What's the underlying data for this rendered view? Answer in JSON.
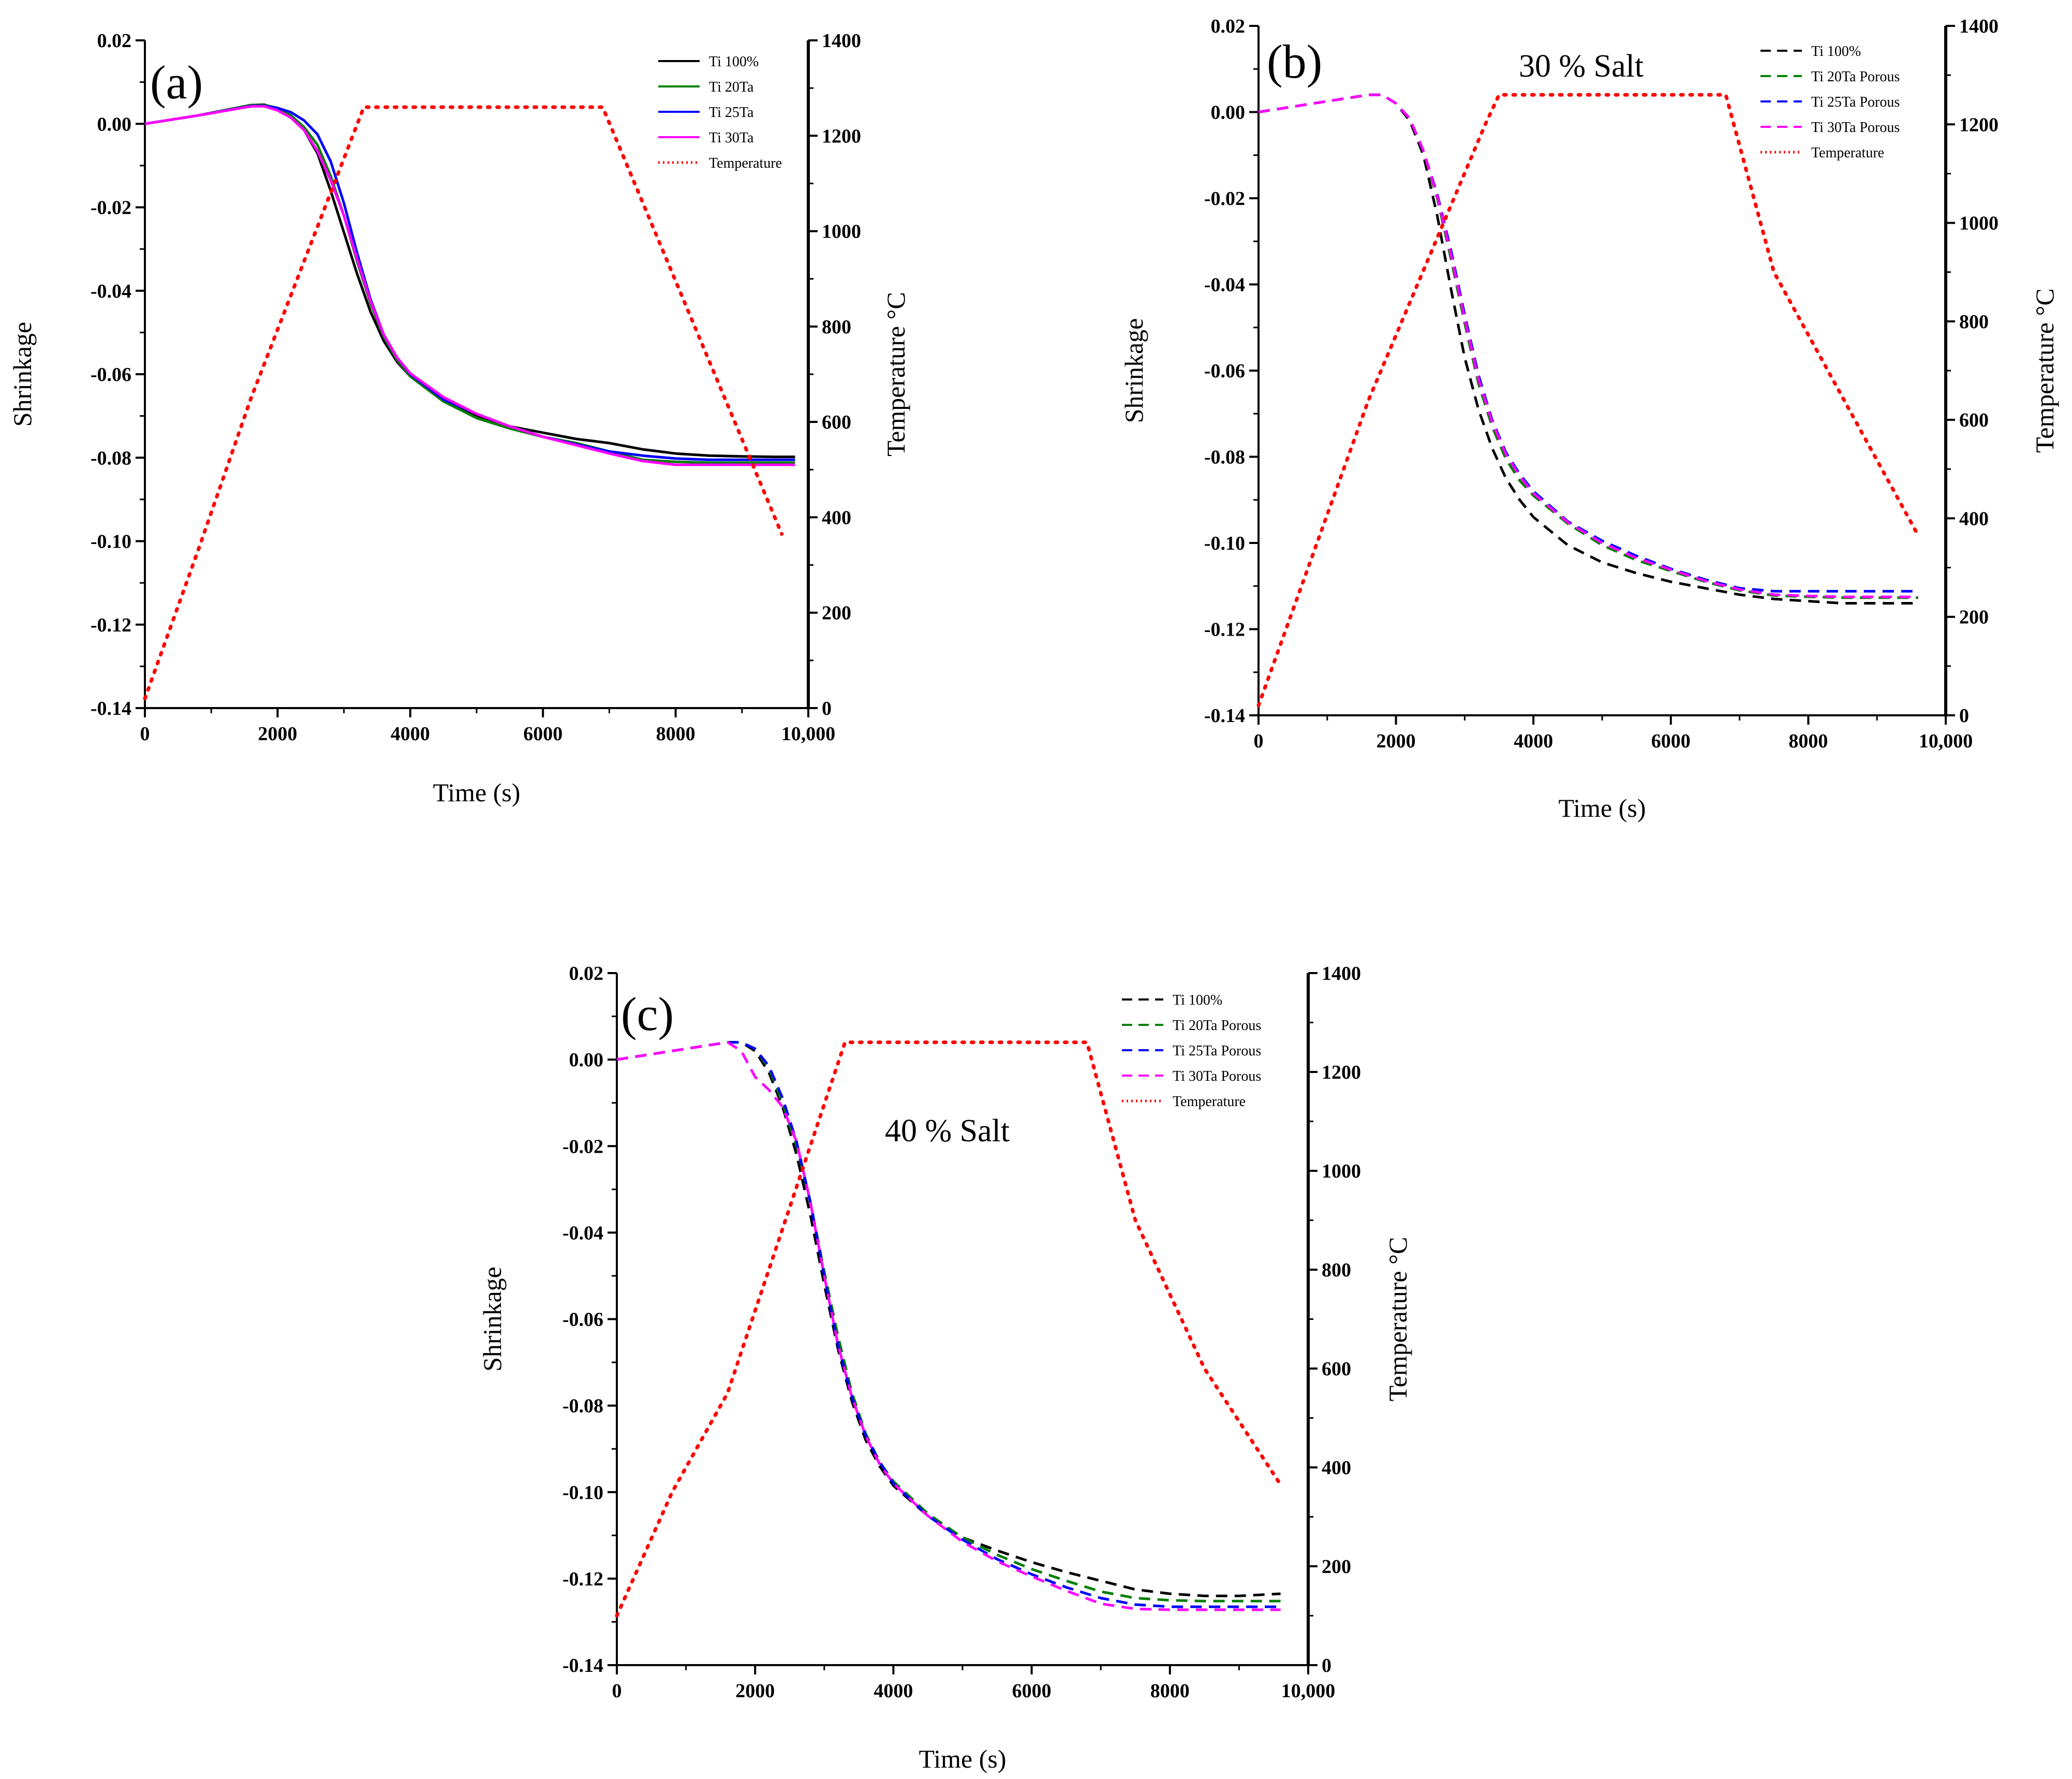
{
  "figure": {
    "bg_color": "#ffffff"
  },
  "chart_data": [
    {
      "panel": "(a)",
      "type": "line",
      "annotation": "",
      "xlabel": "Time (s)",
      "ylabel": "Shrinkage",
      "y2label": "Temperature °C",
      "xlim": [
        0,
        10000
      ],
      "ylim": [
        -0.14,
        0.02
      ],
      "y2lim": [
        0,
        1400
      ],
      "xticks": [
        0,
        2000,
        4000,
        6000,
        8000,
        10000
      ],
      "xtick_labels": [
        "0",
        "2000",
        "4000",
        "6000",
        "8000",
        "10,000"
      ],
      "yticks": [
        0.02,
        0.0,
        -0.02,
        -0.04,
        -0.06,
        -0.08,
        -0.1,
        -0.12,
        -0.14
      ],
      "ytick_labels": [
        "0.02",
        "0.00",
        "-0.02",
        "-0.04",
        "-0.06",
        "-0.08",
        "-0.10",
        "-0.12",
        "-0.14"
      ],
      "y2ticks": [
        0,
        200,
        400,
        600,
        800,
        1000,
        1200,
        1400
      ],
      "y2tick_labels": [
        "0",
        "200",
        "400",
        "600",
        "800",
        "1000",
        "1200",
        "1400"
      ],
      "grid": false,
      "legend_position": "top-right",
      "series": [
        {
          "name": "Ti 100%",
          "color": "#000000",
          "style": "solid",
          "axis": "left",
          "x": [
            0,
            800,
            1600,
            1800,
            2000,
            2200,
            2400,
            2600,
            2800,
            3000,
            3200,
            3400,
            3600,
            3800,
            4000,
            4500,
            5000,
            5500,
            6000,
            6500,
            7000,
            7500,
            8000,
            8500,
            9000,
            9500,
            9800
          ],
          "y": [
            0.0,
            0.002,
            0.0045,
            0.0046,
            0.0035,
            0.0015,
            -0.0015,
            -0.007,
            -0.016,
            -0.026,
            -0.036,
            -0.045,
            -0.052,
            -0.057,
            -0.0605,
            -0.0665,
            -0.07,
            -0.0725,
            -0.074,
            -0.0755,
            -0.0765,
            -0.078,
            -0.079,
            -0.0795,
            -0.0797,
            -0.0798,
            -0.0798
          ]
        },
        {
          "name": "Ti 20Ta",
          "color": "#008000",
          "style": "solid",
          "axis": "left",
          "x": [
            0,
            800,
            1600,
            1800,
            2000,
            2200,
            2400,
            2600,
            2800,
            3000,
            3200,
            3400,
            3600,
            3800,
            4000,
            4500,
            5000,
            5500,
            6000,
            6500,
            7000,
            7500,
            8000,
            8500,
            9000,
            9500,
            9800
          ],
          "y": [
            0.0,
            0.002,
            0.0045,
            0.0045,
            0.0038,
            0.002,
            -0.0008,
            -0.005,
            -0.0125,
            -0.022,
            -0.033,
            -0.043,
            -0.051,
            -0.0565,
            -0.0605,
            -0.0665,
            -0.0705,
            -0.073,
            -0.075,
            -0.0765,
            -0.0785,
            -0.0805,
            -0.081,
            -0.0812,
            -0.0812,
            -0.0812,
            -0.0812
          ]
        },
        {
          "name": "Ti 25Ta",
          "color": "#0000ff",
          "style": "solid",
          "axis": "left",
          "x": [
            0,
            800,
            1600,
            1800,
            2000,
            2200,
            2400,
            2600,
            2800,
            3000,
            3200,
            3400,
            3600,
            3800,
            4000,
            4500,
            5000,
            5500,
            6000,
            6500,
            7000,
            7500,
            8000,
            8500,
            9000,
            9500,
            9800
          ],
          "y": [
            0.0,
            0.002,
            0.0043,
            0.0043,
            0.0038,
            0.0028,
            0.0008,
            -0.0025,
            -0.009,
            -0.019,
            -0.031,
            -0.042,
            -0.0505,
            -0.056,
            -0.06,
            -0.066,
            -0.0695,
            -0.0725,
            -0.075,
            -0.0768,
            -0.0785,
            -0.0795,
            -0.0802,
            -0.0805,
            -0.0805,
            -0.0805,
            -0.0805
          ]
        },
        {
          "name": "Ti 30Ta",
          "color": "#ff00ff",
          "style": "solid",
          "axis": "left",
          "x": [
            0,
            800,
            1600,
            1800,
            2000,
            2200,
            2400,
            2600,
            2800,
            3000,
            3200,
            3400,
            3600,
            3800,
            4000,
            4500,
            5000,
            5500,
            6000,
            6500,
            7000,
            7500,
            8000,
            8500,
            9000,
            9500,
            9800
          ],
          "y": [
            0.0,
            0.002,
            0.0042,
            0.0042,
            0.0032,
            0.0015,
            -0.0015,
            -0.0065,
            -0.0135,
            -0.022,
            -0.0325,
            -0.0425,
            -0.0505,
            -0.056,
            -0.0598,
            -0.0655,
            -0.0695,
            -0.0725,
            -0.075,
            -0.077,
            -0.079,
            -0.0808,
            -0.0817,
            -0.0817,
            -0.0817,
            -0.0817,
            -0.0817
          ]
        },
        {
          "name": "Temperature",
          "color": "#ff0000",
          "style": "dotted",
          "axis": "right",
          "x": [
            0,
            800,
            1600,
            3300,
            6900,
            9600
          ],
          "y": [
            20,
            330,
            650,
            1260,
            1260,
            365
          ]
        }
      ]
    },
    {
      "panel": "(b)",
      "type": "line",
      "annotation": "30 % Salt",
      "xlabel": "Time (s)",
      "ylabel": "Shrinkage",
      "y2label": "Temperature °C",
      "xlim": [
        0,
        10000
      ],
      "ylim": [
        -0.14,
        0.02
      ],
      "y2lim": [
        0,
        1400
      ],
      "xticks": [
        0,
        2000,
        4000,
        6000,
        8000,
        10000
      ],
      "xtick_labels": [
        "0",
        "2000",
        "4000",
        "6000",
        "8000",
        "10,000"
      ],
      "yticks": [
        0.02,
        0.0,
        -0.02,
        -0.04,
        -0.06,
        -0.08,
        -0.1,
        -0.12,
        -0.14
      ],
      "ytick_labels": [
        "0.02",
        "0.00",
        "-0.02",
        "-0.04",
        "-0.06",
        "-0.08",
        "-0.10",
        "-0.12",
        "-0.14"
      ],
      "y2ticks": [
        0,
        200,
        400,
        600,
        800,
        1000,
        1200,
        1400
      ],
      "y2tick_labels": [
        "0",
        "200",
        "400",
        "600",
        "800",
        "1000",
        "1200",
        "1400"
      ],
      "grid": false,
      "legend_position": "top-right",
      "series": [
        {
          "name": "Ti 100%",
          "color": "#000000",
          "style": "dashed",
          "axis": "left",
          "x": [
            0,
            800,
            1600,
            1800,
            2000,
            2200,
            2400,
            2600,
            2800,
            3000,
            3200,
            3400,
            3600,
            3800,
            4000,
            4500,
            5000,
            5500,
            6000,
            6500,
            7000,
            7500,
            8000,
            8500,
            9000,
            9600
          ],
          "y": [
            0.0,
            0.002,
            0.004,
            0.004,
            0.002,
            -0.002,
            -0.01,
            -0.024,
            -0.041,
            -0.057,
            -0.069,
            -0.078,
            -0.085,
            -0.09,
            -0.094,
            -0.1005,
            -0.1045,
            -0.107,
            -0.109,
            -0.1105,
            -0.112,
            -0.113,
            -0.1135,
            -0.114,
            -0.114,
            -0.114
          ]
        },
        {
          "name": "Ti 20Ta Porous",
          "color": "#008000",
          "style": "dashed",
          "axis": "left",
          "x": [
            0,
            800,
            1600,
            1800,
            2000,
            2200,
            2400,
            2600,
            2800,
            3000,
            3200,
            3400,
            3600,
            3800,
            4000,
            4500,
            5000,
            5500,
            6000,
            6500,
            7000,
            7500,
            8000,
            8500,
            9000,
            9600
          ],
          "y": [
            0.0,
            0.002,
            0.004,
            0.004,
            0.002,
            -0.0015,
            -0.009,
            -0.02,
            -0.034,
            -0.049,
            -0.063,
            -0.073,
            -0.0805,
            -0.0855,
            -0.089,
            -0.0955,
            -0.1005,
            -0.104,
            -0.1065,
            -0.109,
            -0.111,
            -0.1122,
            -0.1125,
            -0.1127,
            -0.1127,
            -0.1127
          ]
        },
        {
          "name": "Ti 25Ta Porous",
          "color": "#0000ff",
          "style": "dashed",
          "axis": "left",
          "x": [
            0,
            800,
            1600,
            1800,
            2000,
            2200,
            2400,
            2600,
            2800,
            3000,
            3200,
            3400,
            3600,
            3800,
            4000,
            4500,
            5000,
            5500,
            6000,
            6500,
            7000,
            7500,
            8000,
            8500,
            9000,
            9600
          ],
          "y": [
            0.0,
            0.002,
            0.004,
            0.004,
            0.002,
            -0.0015,
            -0.009,
            -0.019,
            -0.032,
            -0.047,
            -0.061,
            -0.0715,
            -0.079,
            -0.084,
            -0.088,
            -0.095,
            -0.0995,
            -0.103,
            -0.106,
            -0.1085,
            -0.1105,
            -0.1112,
            -0.1112,
            -0.1112,
            -0.1112,
            -0.1112
          ]
        },
        {
          "name": "Ti 30Ta Porous",
          "color": "#ff00ff",
          "style": "dashed",
          "axis": "left",
          "x": [
            0,
            800,
            1600,
            1800,
            2000,
            2200,
            2400,
            2600,
            2800,
            3000,
            3200,
            3400,
            3600,
            3800,
            4000,
            4500,
            5000,
            5500,
            6000,
            6500,
            7000,
            7500,
            8000,
            8500,
            9000,
            9600
          ],
          "y": [
            0.0,
            0.002,
            0.004,
            0.004,
            0.002,
            -0.0015,
            -0.009,
            -0.0195,
            -0.033,
            -0.048,
            -0.062,
            -0.072,
            -0.0795,
            -0.0845,
            -0.0885,
            -0.0952,
            -0.1,
            -0.1035,
            -0.1062,
            -0.1088,
            -0.1108,
            -0.112,
            -0.1123,
            -0.1125,
            -0.1125,
            -0.1125
          ]
        },
        {
          "name": "Temperature",
          "color": "#ff0000",
          "style": "dotted",
          "axis": "right",
          "x": [
            0,
            800,
            1600,
            3300,
            3500,
            6800,
            7500,
            9600
          ],
          "y": [
            20,
            330,
            640,
            1200,
            1260,
            1260,
            900,
            365
          ]
        }
      ]
    },
    {
      "panel": "(c)",
      "type": "line",
      "annotation": "40 % Salt",
      "xlabel": "Time (s)",
      "ylabel": "Shrinkage",
      "y2label": "Temperature °C",
      "xlim": [
        0,
        10000
      ],
      "ylim": [
        -0.14,
        0.02
      ],
      "y2lim": [
        0,
        1400
      ],
      "xticks": [
        0,
        2000,
        4000,
        6000,
        8000,
        10000
      ],
      "xtick_labels": [
        "0",
        "2000",
        "4000",
        "6000",
        "8000",
        "10,000"
      ],
      "yticks": [
        0.02,
        0.0,
        -0.02,
        -0.04,
        -0.06,
        -0.08,
        -0.1,
        -0.12,
        -0.14
      ],
      "ytick_labels": [
        "0.02",
        "0.00",
        "-0.02",
        "-0.04",
        "-0.06",
        "-0.08",
        "-0.10",
        "-0.12",
        "-0.14"
      ],
      "y2ticks": [
        0,
        200,
        400,
        600,
        800,
        1000,
        1200,
        1400
      ],
      "y2tick_labels": [
        "0",
        "200",
        "400",
        "600",
        "800",
        "1000",
        "1200",
        "1400"
      ],
      "grid": false,
      "legend_position": "top-right",
      "series": [
        {
          "name": "Ti 100%",
          "color": "#000000",
          "style": "dashed",
          "axis": "left",
          "x": [
            0,
            800,
            1600,
            1800,
            2000,
            2200,
            2400,
            2600,
            2800,
            3000,
            3200,
            3400,
            3600,
            3800,
            4000,
            4500,
            5000,
            5500,
            6000,
            6500,
            7000,
            7500,
            8000,
            8500,
            9000,
            9600
          ],
          "y": [
            0.0,
            0.002,
            0.004,
            0.004,
            0.002,
            -0.003,
            -0.011,
            -0.022,
            -0.036,
            -0.052,
            -0.067,
            -0.079,
            -0.088,
            -0.094,
            -0.0985,
            -0.1055,
            -0.1105,
            -0.1135,
            -0.1162,
            -0.1185,
            -0.1205,
            -0.1225,
            -0.1235,
            -0.124,
            -0.124,
            -0.1235
          ]
        },
        {
          "name": "Ti 20Ta Porous",
          "color": "#008000",
          "style": "dashed",
          "axis": "left",
          "x": [
            0,
            800,
            1600,
            1800,
            2000,
            2200,
            2400,
            2600,
            2800,
            3000,
            3200,
            3400,
            3600,
            3800,
            4000,
            4500,
            5000,
            5500,
            6000,
            6500,
            7000,
            7500,
            8000,
            8500,
            9000,
            9600
          ],
          "y": [
            0.0,
            0.002,
            0.004,
            0.004,
            0.0025,
            -0.002,
            -0.01,
            -0.02,
            -0.033,
            -0.049,
            -0.064,
            -0.077,
            -0.0865,
            -0.093,
            -0.0975,
            -0.105,
            -0.1105,
            -0.1145,
            -0.1178,
            -0.1205,
            -0.123,
            -0.1245,
            -0.125,
            -0.1252,
            -0.1252,
            -0.1252
          ]
        },
        {
          "name": "Ti 25Ta Porous",
          "color": "#0000ff",
          "style": "dashed",
          "axis": "left",
          "x": [
            0,
            800,
            1600,
            1800,
            2000,
            2200,
            2400,
            2600,
            2800,
            3000,
            3200,
            3400,
            3600,
            3800,
            4000,
            4500,
            5000,
            5500,
            6000,
            6500,
            7000,
            7500,
            8000,
            8500,
            9000,
            9600
          ],
          "y": [
            0.0,
            0.002,
            0.004,
            0.004,
            0.0025,
            -0.0015,
            -0.009,
            -0.019,
            -0.033,
            -0.05,
            -0.066,
            -0.078,
            -0.087,
            -0.093,
            -0.098,
            -0.1055,
            -0.111,
            -0.1155,
            -0.119,
            -0.122,
            -0.1245,
            -0.126,
            -0.1265,
            -0.1265,
            -0.1265,
            -0.1265
          ]
        },
        {
          "name": "Ti 30Ta Porous",
          "color": "#ff00ff",
          "style": "dashed",
          "axis": "left",
          "x": [
            0,
            800,
            1600,
            1800,
            2000,
            2200,
            2400,
            2600,
            2800,
            3000,
            3200,
            3400,
            3600,
            3800,
            4000,
            4500,
            5000,
            5500,
            6000,
            6500,
            7000,
            7500,
            8000,
            8500,
            9000,
            9600
          ],
          "y": [
            0.0,
            0.002,
            0.004,
            0.002,
            -0.004,
            -0.007,
            -0.011,
            -0.019,
            -0.033,
            -0.05,
            -0.066,
            -0.078,
            -0.087,
            -0.0935,
            -0.098,
            -0.1055,
            -0.1115,
            -0.116,
            -0.1195,
            -0.1228,
            -0.1258,
            -0.127,
            -0.1272,
            -0.1272,
            -0.1272,
            -0.1272
          ]
        },
        {
          "name": "Temperature",
          "color": "#ff0000",
          "style": "dotted",
          "axis": "right",
          "x": [
            0,
            800,
            1600,
            3300,
            6800,
            7500,
            8500,
            9600
          ],
          "y": [
            100,
            350,
            550,
            1260,
            1260,
            900,
            600,
            365
          ]
        }
      ]
    }
  ]
}
